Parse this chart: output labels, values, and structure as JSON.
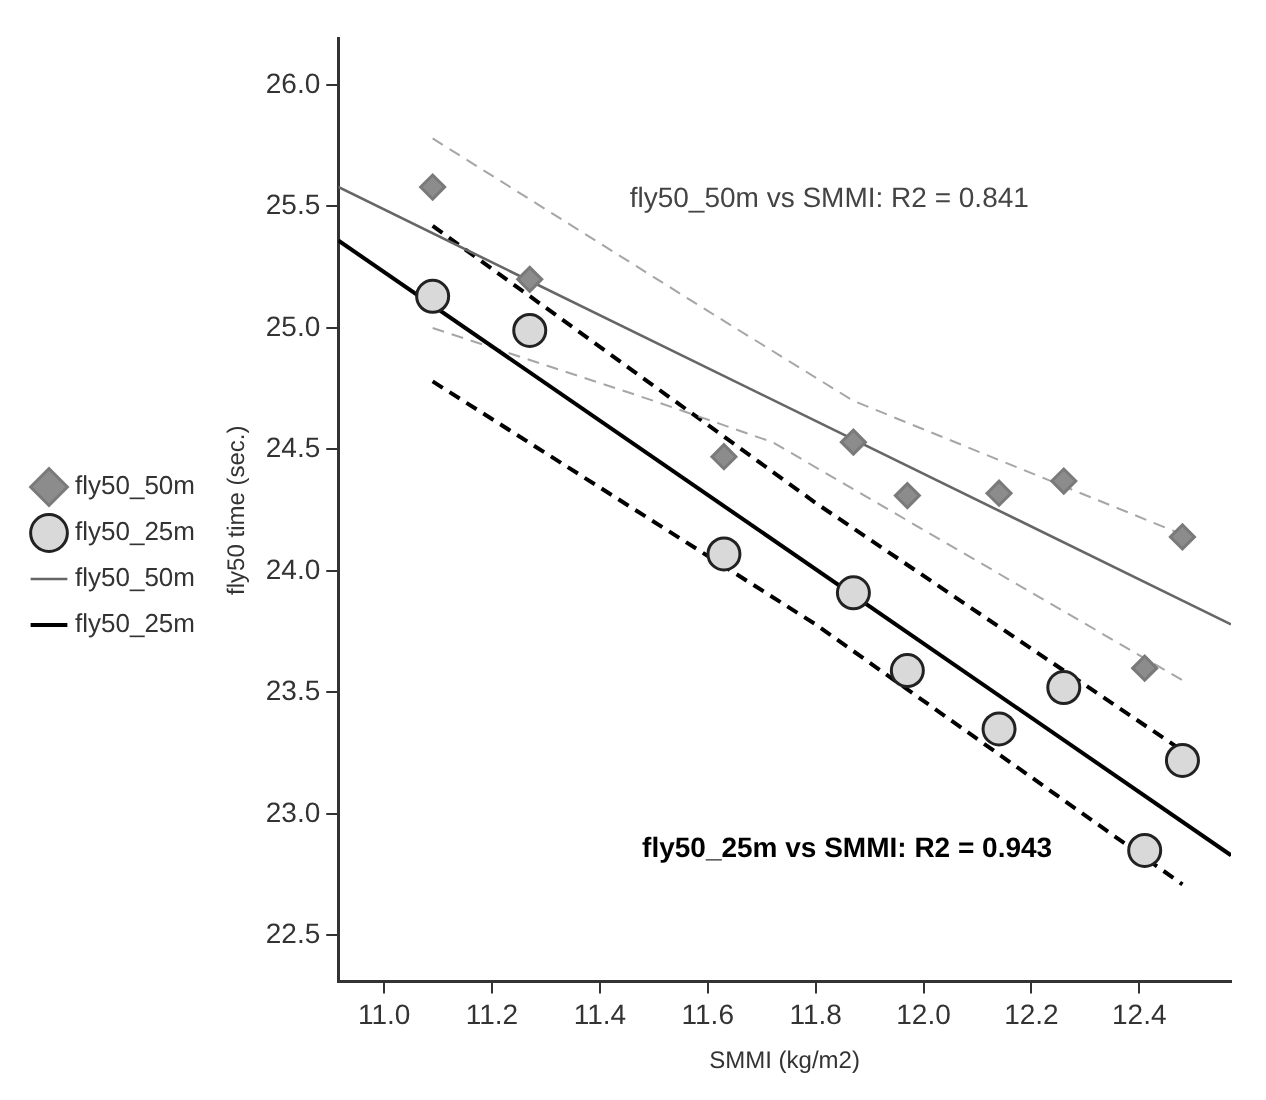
{
  "chart_data": {
    "type": "scatter",
    "xlabel": "SMMI (kg/m2)",
    "ylabel": "fly50 time (sec.)",
    "xlim": [
      10.915,
      12.57
    ],
    "xticks": [
      {
        "value": 11.0,
        "label": "11.0"
      },
      {
        "value": 11.2,
        "label": "11.2"
      },
      {
        "value": 11.4,
        "label": "11.4"
      },
      {
        "value": 11.6,
        "label": "11.6"
      },
      {
        "value": 11.8,
        "label": "11.8"
      },
      {
        "value": 12.0,
        "label": "12.0"
      },
      {
        "value": 12.2,
        "label": "12.2"
      },
      {
        "value": 12.4,
        "label": "12.4"
      }
    ],
    "ylim": [
      22.31,
      26.19
    ],
    "yticks": [
      {
        "value": 22.5,
        "label": "22.5"
      },
      {
        "value": 23.0,
        "label": "23.0"
      },
      {
        "value": 23.5,
        "label": "23.5"
      },
      {
        "value": 24.0,
        "label": "24.0"
      },
      {
        "value": 24.5,
        "label": "24.5"
      },
      {
        "value": 25.0,
        "label": "25.0"
      },
      {
        "value": 25.5,
        "label": "25.5"
      },
      {
        "value": 26.0,
        "label": "26.0"
      }
    ],
    "grid": false,
    "legend": "left",
    "series": [
      {
        "name": "fly50_50m",
        "marker": "diamond",
        "color": "#8c8c8c",
        "x": [
          11.09,
          11.27,
          11.63,
          11.87,
          11.97,
          12.14,
          12.26,
          12.48,
          12.41
        ],
        "values": [
          25.58,
          25.2,
          24.47,
          24.53,
          24.31,
          24.32,
          24.37,
          24.14,
          23.6
        ]
      },
      {
        "name": "fly50_25m",
        "marker": "circle",
        "color": "#d9d9d9",
        "x": [
          11.09,
          11.27,
          11.63,
          11.87,
          11.97,
          12.14,
          12.26,
          12.48,
          12.41
        ],
        "values": [
          25.13,
          24.99,
          24.07,
          23.91,
          23.59,
          23.35,
          23.52,
          23.22,
          22.85
        ]
      },
      {
        "name": "fly50_50m",
        "type": "line",
        "line_style": "solid",
        "color": "#666666",
        "x": [
          10.915,
          12.57
        ],
        "values": [
          25.58,
          23.78
        ]
      },
      {
        "name": "fly50_25m",
        "type": "line",
        "line_style": "solid",
        "color": "#000000",
        "x": [
          10.915,
          12.57
        ],
        "values": [
          25.36,
          22.83
        ]
      },
      {
        "type": "line",
        "line_style": "dashed",
        "color": "#a6a6a6",
        "x": [
          11.09,
          11.6,
          11.87,
          12.48
        ],
        "values": [
          25.78,
          25.07,
          24.7,
          24.15
        ]
      },
      {
        "type": "line",
        "line_style": "dashed",
        "color": "#a6a6a6",
        "x": [
          11.09,
          11.5,
          11.72,
          12.48
        ],
        "values": [
          25.0,
          24.7,
          24.53,
          23.55
        ]
      },
      {
        "type": "line",
        "line_style": "dashed",
        "color": "#000000",
        "x": [
          11.09,
          11.8,
          12.48
        ],
        "values": [
          25.42,
          24.28,
          23.26
        ]
      },
      {
        "type": "line",
        "line_style": "dashed",
        "color": "#000000",
        "x": [
          11.09,
          11.8,
          12.48
        ],
        "values": [
          24.78,
          23.78,
          22.71
        ]
      }
    ],
    "annotations": [
      "fly50_50m vs SMMI: R2 = 0.841",
      "fly50_25m vs SMMI: R2 = 0.943"
    ]
  }
}
